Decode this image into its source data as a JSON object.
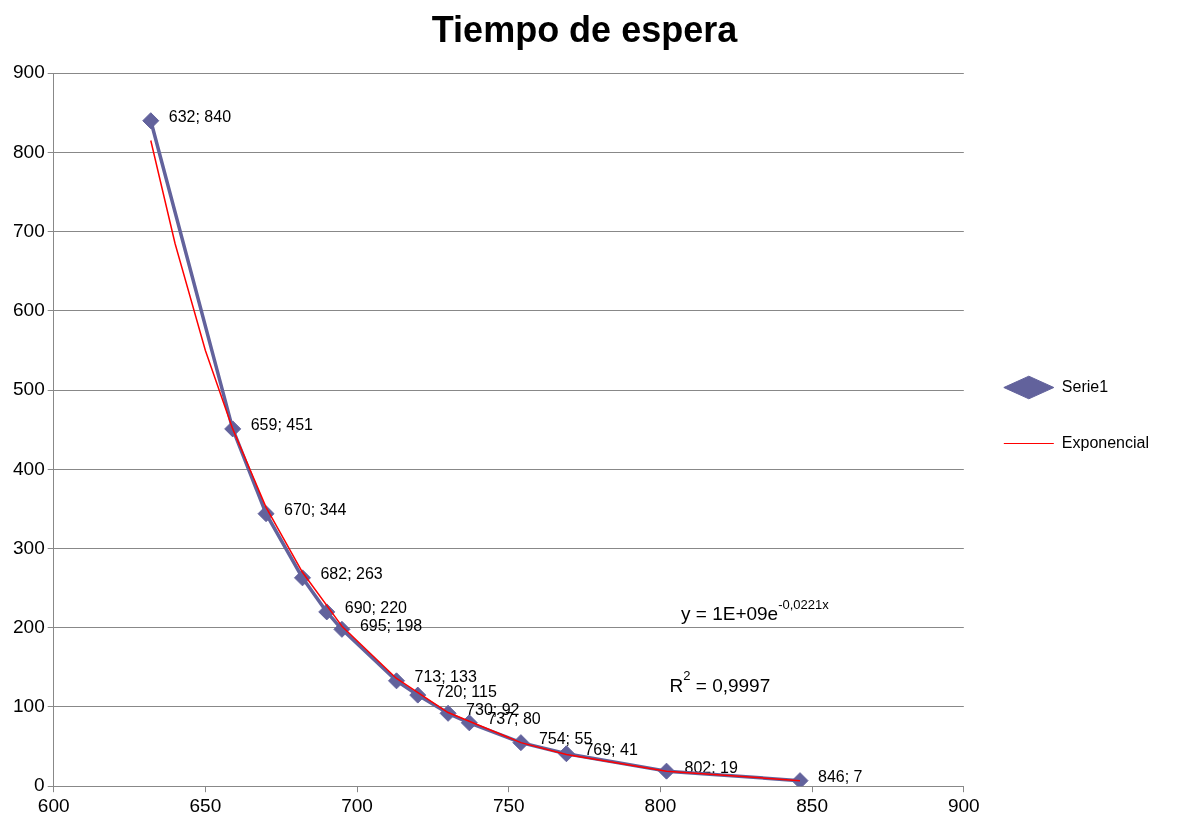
{
  "chart_data": {
    "type": "line",
    "title": "Tiempo de espera",
    "series": [
      {
        "name": "Serie1",
        "color": "#62629c",
        "marker": "diamond",
        "x": [
          632,
          659,
          670,
          682,
          690,
          695,
          713,
          720,
          730,
          737,
          754,
          769,
          802,
          846
        ],
        "values": [
          840,
          451,
          344,
          263,
          220,
          198,
          133,
          115,
          92,
          80,
          55,
          41,
          19,
          7
        ],
        "value_labels": [
          "632; 840",
          "659; 451",
          "670; 344",
          "682; 263",
          "690; 220",
          "695; 198",
          "713; 133",
          "720; 115",
          "730; 92",
          "737; 80",
          "754; 55",
          "769; 41",
          "802; 19",
          "846; 7"
        ]
      },
      {
        "name": "Exponencial",
        "color": "#ff0000",
        "marker": "none",
        "x": [
          632,
          640,
          650,
          659,
          670,
          682,
          695,
          713,
          730,
          754,
          769,
          802,
          846
        ],
        "values": [
          815,
          685,
          550,
          451,
          352,
          270,
          202,
          136,
          93,
          55,
          40,
          19,
          7
        ]
      }
    ],
    "xlim": [
      600,
      900
    ],
    "xticks": [
      600,
      650,
      700,
      750,
      800,
      850,
      900
    ],
    "ylim": [
      0,
      900
    ],
    "yticks": [
      0,
      100,
      200,
      300,
      400,
      500,
      600,
      700,
      800,
      900
    ],
    "grid": "y",
    "legend": "right",
    "annotations": [
      "y = 1E+09e$^{-0,0221x}$",
      "R$^{2}$ = 0,9997"
    ]
  }
}
